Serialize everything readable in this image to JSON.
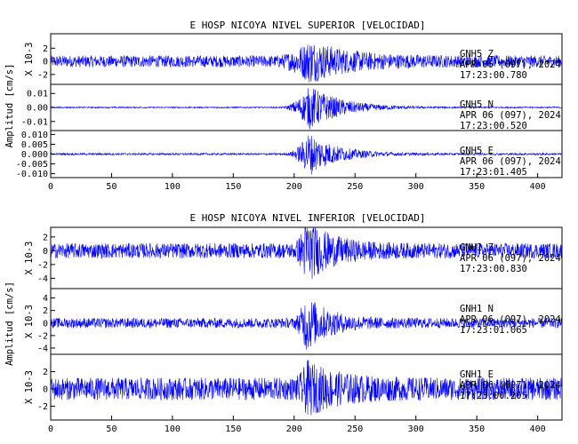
{
  "chart_data": [
    {
      "type": "line",
      "title": "E HOSP NICOYA NIVEL SUPERIOR [VELOCIDAD]",
      "ylabel": "Amplitud [cm/s]",
      "x": {
        "range": [
          0,
          420
        ],
        "ticks": [
          0,
          50,
          100,
          150,
          200,
          250,
          300,
          350,
          400
        ]
      },
      "series_color": "#0000ff",
      "panels": [
        {
          "station": "GNH5",
          "component": "Z",
          "date": "APR 06 (097), 2024",
          "time": "17:23:00.780",
          "y_multiplier": "X 10-3",
          "ylim": [
            -3.5,
            4.2
          ],
          "yticks": [
            2,
            0,
            -2
          ],
          "ytick_labels": [
            "2",
            "0",
            "-2"
          ],
          "signal": {
            "noise": 0.9,
            "peak": 3.5,
            "peak_x": 213,
            "onset": 182,
            "decay": 30
          }
        },
        {
          "station": "GNH5",
          "component": "N",
          "date": "APR 06 (097), 2024",
          "time": "17:23:00.520",
          "y_multiplier": "",
          "ylim": [
            -0.0165,
            0.0165
          ],
          "yticks": [
            0.01,
            0.0,
            -0.01
          ],
          "ytick_labels": [
            "0.01",
            "0.00",
            "-0.01"
          ],
          "signal": {
            "noise": 0.0005,
            "peak": 0.016,
            "peak_x": 213,
            "onset": 188,
            "decay": 25
          }
        },
        {
          "station": "GNH5",
          "component": "E",
          "date": "APR 06 (097), 2024",
          "time": "17:23:01.405",
          "y_multiplier": "",
          "ylim": [
            -0.012,
            0.012
          ],
          "yticks": [
            0.01,
            0.005,
            0.0,
            -0.005,
            -0.01
          ],
          "ytick_labels": [
            "0.010",
            "0.005",
            "0.000",
            "-0.005",
            "-0.010"
          ],
          "signal": {
            "noise": 0.0005,
            "peak": 0.0115,
            "peak_x": 212,
            "onset": 192,
            "decay": 22
          }
        }
      ]
    },
    {
      "type": "line",
      "title": "E HOSP NICOYA NIVEL INFERIOR [VELOCIDAD]",
      "ylabel": "Amplitud [cm/s]",
      "x": {
        "range": [
          0,
          420
        ],
        "ticks": [
          0,
          50,
          100,
          150,
          200,
          250,
          300,
          350,
          400
        ]
      },
      "series_color": "#0000ff",
      "panels": [
        {
          "station": "GNH1",
          "component": "Z",
          "date": "APR 06 (097), 2024",
          "time": "17:23:00.830",
          "y_multiplier": "X 10-3",
          "ylim": [
            -5.5,
            3.4
          ],
          "yticks": [
            2,
            0,
            -2,
            -4
          ],
          "ytick_labels": [
            "2",
            "0",
            "-2",
            "-4"
          ],
          "signal": {
            "noise": 1.1,
            "peak": 5.0,
            "peak_x": 210,
            "onset": 198,
            "decay": 20
          }
        },
        {
          "station": "GNH1",
          "component": "N",
          "date": "APR 06 (097), 2024",
          "time": "17:23:01.065",
          "y_multiplier": "X 10-3",
          "ylim": [
            -5.0,
            5.5
          ],
          "yticks": [
            4,
            2,
            0,
            -2,
            -4
          ],
          "ytick_labels": [
            "4",
            "2",
            "0",
            "-2",
            "-4"
          ],
          "signal": {
            "noise": 0.8,
            "peak": 4.8,
            "peak_x": 210,
            "onset": 198,
            "decay": 18
          }
        },
        {
          "station": "GNH1",
          "component": "E",
          "date": "APR 06 (097), 2024",
          "time": "17:23:00.205",
          "y_multiplier": "X 10-3",
          "ylim": [
            -3.6,
            4.0
          ],
          "yticks": [
            2,
            0,
            -2
          ],
          "ytick_labels": [
            "2",
            "0",
            "-2"
          ],
          "signal": {
            "noise": 1.3,
            "peak": 3.4,
            "peak_x": 211,
            "onset": 198,
            "decay": 25
          }
        }
      ]
    }
  ]
}
